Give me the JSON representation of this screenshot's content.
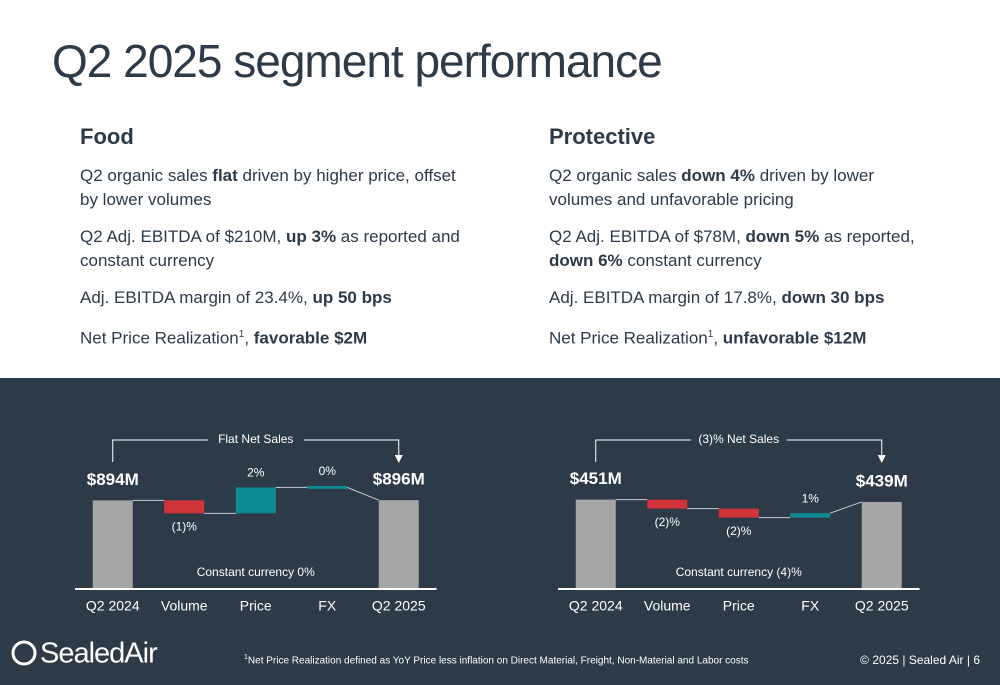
{
  "title": "Q2 2025 segment performance",
  "sections": [
    {
      "heading": "Food",
      "bullets": [
        [
          {
            "text": "Q2 organic sales "
          },
          {
            "text": "flat",
            "bold": true
          },
          {
            "text": " driven by higher price, offset by lower volumes"
          }
        ],
        [
          {
            "text": "Q2 Adj. EBITDA of $210M, "
          },
          {
            "text": "up 3%",
            "bold": true
          },
          {
            "text": " as reported and constant currency"
          }
        ],
        [
          {
            "text": "Adj. EBITDA margin of 23.4%, "
          },
          {
            "text": "up 50 bps",
            "bold": true
          }
        ],
        [
          {
            "text": "Net Price Realization"
          },
          {
            "text": "1",
            "sup": true
          },
          {
            "text": ", "
          },
          {
            "text": "favorable $2M",
            "bold": true
          }
        ]
      ]
    },
    {
      "heading": "Protective",
      "bullets": [
        [
          {
            "text": "Q2 organic sales "
          },
          {
            "text": "down 4%",
            "bold": true
          },
          {
            "text": " driven by lower volumes and unfavorable pricing"
          }
        ],
        [
          {
            "text": "Q2 Adj. EBITDA of $78M, "
          },
          {
            "text": "down 5%",
            "bold": true
          },
          {
            "text": " as reported, "
          },
          {
            "text": "down 6%",
            "bold": true
          },
          {
            "text": " constant currency"
          }
        ],
        [
          {
            "text": "Adj. EBITDA margin of 17.8%, "
          },
          {
            "text": "down 30 bps",
            "bold": true
          }
        ],
        [
          {
            "text": "Net Price Realization"
          },
          {
            "text": "1",
            "sup": true
          },
          {
            "text": ", "
          },
          {
            "text": "unfavorable $12M",
            "bold": true
          }
        ]
      ]
    }
  ],
  "chart_data": [
    {
      "type": "waterfall",
      "bracket_label": "Flat Net Sales",
      "note": "Constant currency 0%",
      "categories": [
        "Q2 2024",
        "Volume",
        "Price",
        "FX",
        "Q2 2025"
      ],
      "values": [
        894,
        -1,
        2,
        0,
        896
      ],
      "value_labels": [
        "$894M",
        "(1)%",
        "2%",
        "0%",
        "$896M"
      ],
      "totals": [
        true,
        false,
        false,
        false,
        true
      ],
      "ylim": [
        0,
        1000
      ],
      "colors": {
        "total": "#a6a6a6",
        "increase": "#0e8a94",
        "decrease": "#d0343a"
      }
    },
    {
      "type": "waterfall",
      "bracket_label": "(3)% Net Sales",
      "note": "Constant currency (4)%",
      "categories": [
        "Q2 2024",
        "Volume",
        "Price",
        "FX",
        "Q2 2025"
      ],
      "values": [
        451,
        -2,
        -2,
        1,
        439
      ],
      "value_labels": [
        "$451M",
        "(2)%",
        "(2)%",
        "1%",
        "$439M"
      ],
      "totals": [
        true,
        false,
        false,
        false,
        true
      ],
      "ylim": [
        0,
        500
      ],
      "colors": {
        "total": "#a6a6a6",
        "increase": "#0e8a94",
        "decrease": "#d0343a"
      }
    }
  ],
  "footer": {
    "logo": "SealedAir",
    "footnote": [
      {
        "text": "1",
        "sup": true
      },
      {
        "text": "Net Price Realization defined as YoY Price less inflation on Direct Material, Freight, Non-Material and Labor costs"
      }
    ],
    "copyright": "© 2025  |  Sealed Air  |  6"
  }
}
